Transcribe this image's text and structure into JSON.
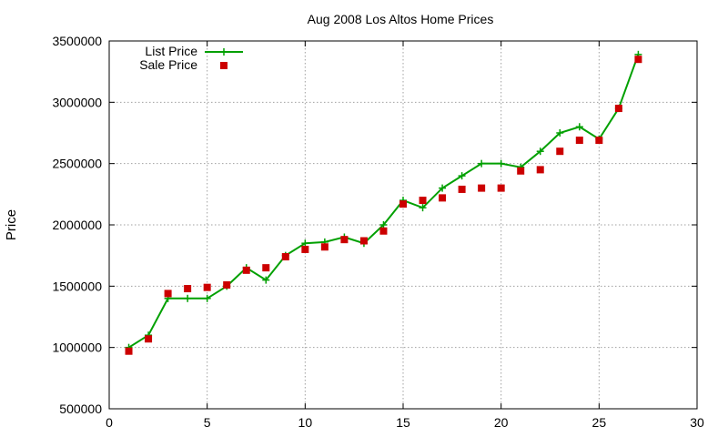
{
  "chart_data": {
    "type": "line",
    "title": "Aug 2008 Los Altos Home Prices",
    "xlabel": "",
    "ylabel": "Price",
    "xlim": [
      0,
      30
    ],
    "ylim": [
      500000,
      3500000
    ],
    "xticks": [
      0,
      5,
      10,
      15,
      20,
      25,
      30
    ],
    "yticks": [
      500000,
      1000000,
      1500000,
      2000000,
      2500000,
      3000000,
      3500000
    ],
    "grid": true,
    "legend_position": "top-left",
    "series": [
      {
        "name": "List Price",
        "style": "line-plus",
        "color": "#00a000",
        "x": [
          1,
          2,
          3,
          4,
          5,
          6,
          7,
          8,
          9,
          10,
          11,
          12,
          13,
          14,
          15,
          16,
          17,
          18,
          19,
          20,
          21,
          22,
          23,
          24,
          25,
          26,
          27
        ],
        "y": [
          1000000,
          1100000,
          1400000,
          1400000,
          1400000,
          1500000,
          1650000,
          1550000,
          1750000,
          1850000,
          1860000,
          1900000,
          1850000,
          2000000,
          2200000,
          2140000,
          2300000,
          2400000,
          2500000,
          2500000,
          2470000,
          2600000,
          2750000,
          2800000,
          2700000,
          2950000,
          3390000
        ]
      },
      {
        "name": "Sale Price",
        "style": "square-marker",
        "color": "#cc0000",
        "x": [
          1,
          2,
          3,
          4,
          5,
          6,
          7,
          8,
          9,
          10,
          11,
          12,
          13,
          14,
          15,
          16,
          17,
          18,
          19,
          20,
          21,
          22,
          23,
          24,
          25,
          26,
          27
        ],
        "y": [
          970000,
          1070000,
          1440000,
          1480000,
          1490000,
          1510000,
          1630000,
          1650000,
          1740000,
          1800000,
          1820000,
          1880000,
          1870000,
          1950000,
          2170000,
          2200000,
          2220000,
          2290000,
          2300000,
          2300000,
          2440000,
          2450000,
          2600000,
          2690000,
          2690000,
          2950000,
          3350000
        ]
      }
    ]
  }
}
